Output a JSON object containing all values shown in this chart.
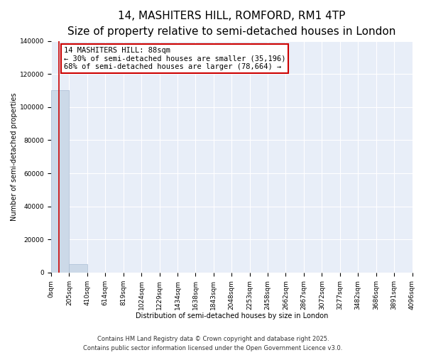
{
  "title": "14, MASHITERS HILL, ROMFORD, RM1 4TP",
  "subtitle": "Size of property relative to semi-detached houses in London",
  "xlabel": "Distribution of semi-detached houses by size in London",
  "ylabel": "Number of semi-detached properties",
  "bar_color": "#ccd9e8",
  "bar_edgecolor": "#aabdd4",
  "background_color": "#e8eef8",
  "grid_color": "#ffffff",
  "annotation_title": "14 MASHITERS HILL: 88sqm",
  "annotation_line1": "← 30% of semi-detached houses are smaller (35,196)",
  "annotation_line2": "68% of semi-detached houses are larger (78,664) →",
  "property_size": 88,
  "property_line_color": "#cc0000",
  "bin_edges": [
    0,
    205,
    410,
    614,
    819,
    1024,
    1229,
    1434,
    1638,
    1843,
    2048,
    2253,
    2458,
    2662,
    2867,
    3072,
    3277,
    3482,
    3686,
    3891,
    4096
  ],
  "bin_labels": [
    "0sqm",
    "205sqm",
    "410sqm",
    "614sqm",
    "819sqm",
    "1024sqm",
    "1229sqm",
    "1434sqm",
    "1638sqm",
    "1843sqm",
    "2048sqm",
    "2253sqm",
    "2458sqm",
    "2662sqm",
    "2867sqm",
    "3072sqm",
    "3277sqm",
    "3482sqm",
    "3686sqm",
    "3891sqm",
    "4096sqm"
  ],
  "bin_heights": [
    110000,
    5000,
    200,
    50,
    20,
    10,
    5,
    3,
    2,
    1,
    1,
    1,
    1,
    0,
    0,
    0,
    0,
    0,
    0,
    0
  ],
  "ylim": [
    0,
    140000
  ],
  "yticks": [
    0,
    20000,
    40000,
    60000,
    80000,
    100000,
    120000,
    140000
  ],
  "footer_line1": "Contains HM Land Registry data © Crown copyright and database right 2025.",
  "footer_line2": "Contains public sector information licensed under the Open Government Licence v3.0.",
  "title_fontsize": 11,
  "subtitle_fontsize": 9,
  "axis_label_fontsize": 7,
  "tick_fontsize": 6.5,
  "annotation_fontsize": 7.5,
  "footer_fontsize": 6,
  "annotation_box_edgecolor": "#cc0000",
  "annotation_box_facecolor": "#ffffff"
}
